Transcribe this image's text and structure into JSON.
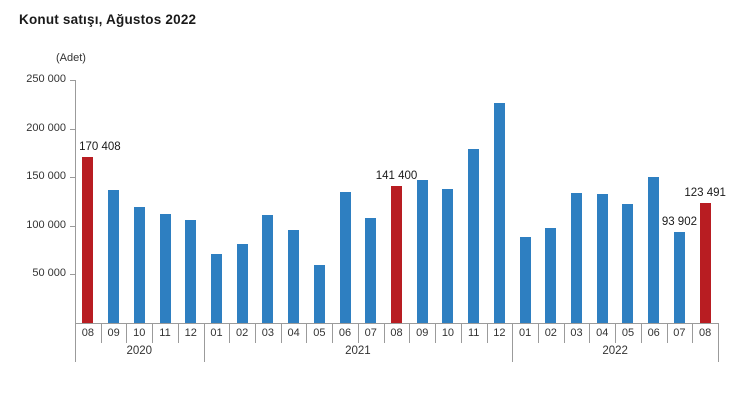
{
  "page": {
    "background": "#ffffff"
  },
  "chart_data": {
    "type": "bar",
    "title": "Konut satışı, Ağustos 2022",
    "unit_label": "(Adet)",
    "xlabel": "",
    "ylabel": "",
    "ylim": [
      0,
      250000
    ],
    "ytick_interval": 50000,
    "yticks": [
      {
        "value": 250000,
        "label": "250 000"
      },
      {
        "value": 200000,
        "label": "200 000"
      },
      {
        "value": 150000,
        "label": "150 000"
      },
      {
        "value": 100000,
        "label": "100 000"
      },
      {
        "value": 50000,
        "label": "50 000"
      }
    ],
    "grid": false,
    "legend_position": "none",
    "colors": {
      "bar": "#2e7fc1",
      "highlight": "#b81d22",
      "axis": "#9b9b9b",
      "text": "#333333",
      "label_text": "#1a1a1a"
    },
    "groups": [
      {
        "year": "2020",
        "count": 5
      },
      {
        "year": "2021",
        "count": 12
      },
      {
        "year": "2022",
        "count": 8
      }
    ],
    "points": [
      {
        "month": "08",
        "year": "2020",
        "value": 170408,
        "highlight": true,
        "label": "170 408"
      },
      {
        "month": "09",
        "year": "2020",
        "value": 136700,
        "highlight": false
      },
      {
        "month": "10",
        "year": "2020",
        "value": 119600,
        "highlight": false
      },
      {
        "month": "11",
        "year": "2020",
        "value": 112500,
        "highlight": false
      },
      {
        "month": "12",
        "year": "2020",
        "value": 106000,
        "highlight": false
      },
      {
        "month": "01",
        "year": "2021",
        "value": 70600,
        "highlight": false
      },
      {
        "month": "02",
        "year": "2021",
        "value": 81200,
        "highlight": false
      },
      {
        "month": "03",
        "year": "2021",
        "value": 111200,
        "highlight": false
      },
      {
        "month": "04",
        "year": "2021",
        "value": 95900,
        "highlight": false
      },
      {
        "month": "05",
        "year": "2021",
        "value": 59200,
        "highlight": false
      },
      {
        "month": "06",
        "year": "2021",
        "value": 134700,
        "highlight": false
      },
      {
        "month": "07",
        "year": "2021",
        "value": 107800,
        "highlight": false
      },
      {
        "month": "08",
        "year": "2021",
        "value": 141400,
        "highlight": true,
        "label": "141 400"
      },
      {
        "month": "09",
        "year": "2021",
        "value": 147100,
        "highlight": false
      },
      {
        "month": "10",
        "year": "2021",
        "value": 137400,
        "highlight": false
      },
      {
        "month": "11",
        "year": "2021",
        "value": 178800,
        "highlight": false
      },
      {
        "month": "12",
        "year": "2021",
        "value": 226500,
        "highlight": false
      },
      {
        "month": "01",
        "year": "2022",
        "value": 88300,
        "highlight": false
      },
      {
        "month": "02",
        "year": "2022",
        "value": 97600,
        "highlight": false
      },
      {
        "month": "03",
        "year": "2022",
        "value": 134200,
        "highlight": false
      },
      {
        "month": "04",
        "year": "2022",
        "value": 133100,
        "highlight": false
      },
      {
        "month": "05",
        "year": "2022",
        "value": 122800,
        "highlight": false
      },
      {
        "month": "06",
        "year": "2022",
        "value": 150500,
        "highlight": false
      },
      {
        "month": "07",
        "year": "2022",
        "value": 93902,
        "highlight": false,
        "label": "93 902"
      },
      {
        "month": "08",
        "year": "2022",
        "value": 123491,
        "highlight": true,
        "label": "123 491"
      }
    ]
  }
}
